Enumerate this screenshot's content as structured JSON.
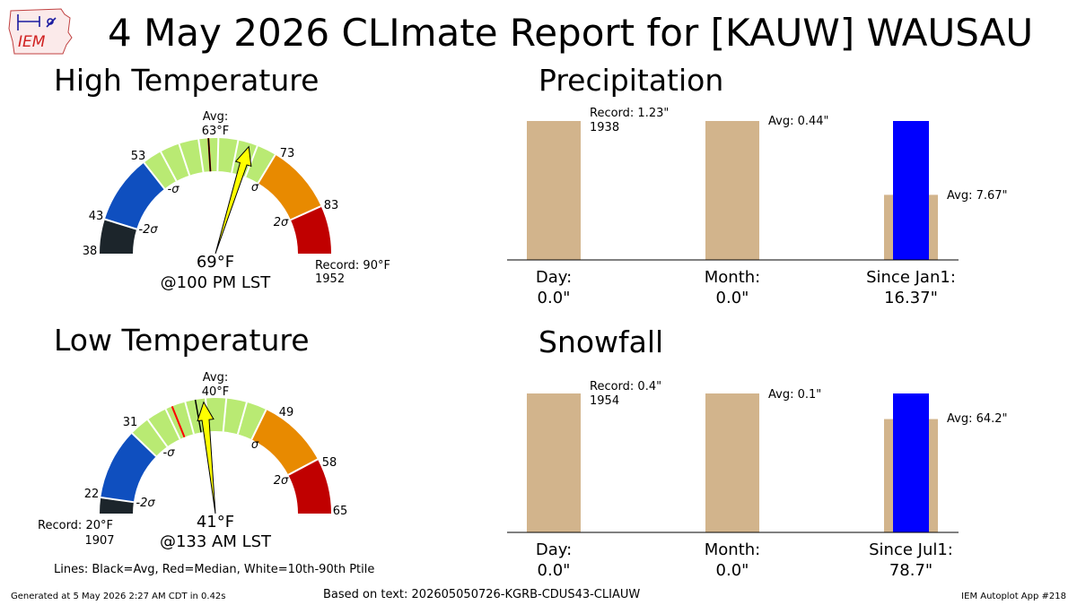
{
  "title": "4 May 2026 CLImate Report for [KAUW] WAUSAU",
  "logo": {
    "text": "IEM",
    "icon": "iem-iowa-logo"
  },
  "sections": {
    "high": "High Temperature",
    "low": "Low Temperature",
    "precip": "Precipitation",
    "snow": "Snowfall"
  },
  "high_gauge": {
    "avg_label": "Avg:",
    "avg_value": "63°F",
    "ticks": [
      "38",
      "43",
      "53",
      "73",
      "83"
    ],
    "sigma_labels": [
      "-2σ",
      "-σ",
      "σ",
      "2σ"
    ],
    "end_label": "",
    "reading": "69°F",
    "time": "@100 PM LST",
    "record_label": "Record: 90°F",
    "record_year": "1952"
  },
  "low_gauge": {
    "avg_label": "Avg:",
    "avg_value": "40°F",
    "ticks": [
      "22",
      "31",
      "49",
      "58",
      "65"
    ],
    "sigma_labels": [
      "-2σ",
      "-σ",
      "σ",
      "2σ"
    ],
    "reading": "41°F",
    "time": "@133 AM LST",
    "record_label": "Record: 20°F",
    "record_year": "1907"
  },
  "lines_note": "Lines: Black=Avg, Red=Median, White=10th-90th Ptile",
  "footer": {
    "generated": "Generated at 5 May 2026 2:27 AM CDT in 0.42s",
    "based_on": "Based on text: 202605050726-KGRB-CDUS43-CLIAUW",
    "app": "IEM Autoplot App #218"
  },
  "precip_panel": {
    "day_record": "Record: 1.23\"",
    "day_record_year": "1938",
    "month_avg": "Avg: 0.44\"",
    "ytd_avg": "Avg: 7.67\"",
    "cats": [
      {
        "name": "Day:",
        "value": "0.0\""
      },
      {
        "name": "Month:",
        "value": "0.0\""
      },
      {
        "name": "Since Jan1:",
        "value": "16.37\""
      }
    ]
  },
  "snow_panel": {
    "day_record": "Record: 0.4\"",
    "day_record_year": "1954",
    "month_avg": "Avg: 0.1\"",
    "season_avg": "Avg: 64.2\"",
    "cats": [
      {
        "name": "Day:",
        "value": "0.0\""
      },
      {
        "name": "Month:",
        "value": "0.0\""
      },
      {
        "name": "Since Jul1:",
        "value": "78.7\""
      }
    ]
  },
  "colors": {
    "below2": "#1c252b",
    "below": "#0f4fbf",
    "normal": "#b9ea73",
    "above": "#e88a00",
    "above2": "#c00000",
    "needle": "#ffff00",
    "bar_ref": "#d2b48c",
    "bar_obs": "#0000ff"
  },
  "chart_data": [
    {
      "type": "gauge",
      "title": "High Temperature",
      "unit": "°F",
      "range": [
        38,
        90
      ],
      "bands": [
        [
          38,
          43
        ],
        [
          43,
          53
        ],
        [
          53,
          73
        ],
        [
          73,
          83
        ],
        [
          83,
          90
        ]
      ],
      "avg": 63,
      "median": 63,
      "observed": 69,
      "record": 90
    },
    {
      "type": "gauge",
      "title": "Low Temperature",
      "unit": "°F",
      "range": [
        20,
        65
      ],
      "bands": [
        [
          20,
          22
        ],
        [
          22,
          31
        ],
        [
          31,
          49
        ],
        [
          49,
          58
        ],
        [
          58,
          65
        ]
      ],
      "avg": 40,
      "median": 37,
      "observed": 41,
      "record": 20
    },
    {
      "type": "bar",
      "title": "Precipitation",
      "categories": [
        "Day:",
        "Month:",
        "Since Jan1:"
      ],
      "series": [
        {
          "name": "Record",
          "values": [
            1.23,
            null,
            null
          ]
        },
        {
          "name": "Avg",
          "values": [
            null,
            0.44,
            7.67
          ]
        }
      ],
      "observed": [
        0.0,
        0.0,
        16.37
      ],
      "panel_scales": [
        1.23,
        0.44,
        16.37
      ]
    },
    {
      "type": "bar",
      "title": "Snowfall",
      "categories": [
        "Day:",
        "Month:",
        "Since Jul1:"
      ],
      "series": [
        {
          "name": "Record",
          "values": [
            0.4,
            null,
            null
          ]
        },
        {
          "name": "Avg",
          "values": [
            null,
            0.1,
            64.2
          ]
        }
      ],
      "observed": [
        0.0,
        0.0,
        78.7
      ],
      "panel_scales": [
        0.4,
        0.1,
        78.7
      ]
    }
  ]
}
